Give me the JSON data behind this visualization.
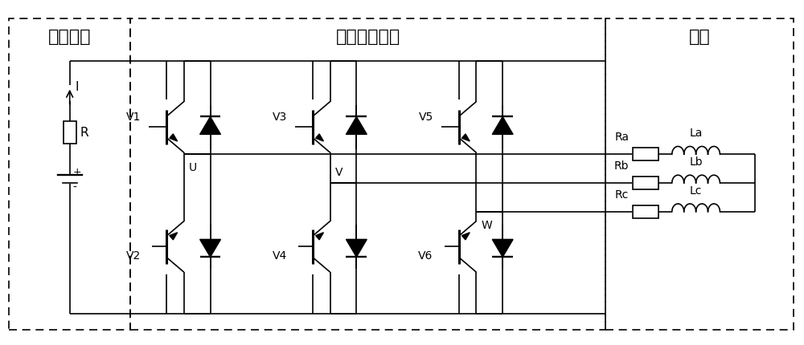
{
  "title_battery": "动力电池",
  "title_motor_ctrl": "电机控制系统",
  "title_motor": "电机",
  "label_I": "I",
  "label_R": "R",
  "label_U": "U",
  "label_V": "V",
  "label_W": "W",
  "label_V1": "V1",
  "label_V2": "V2",
  "label_V3": "V3",
  "label_V4": "V4",
  "label_V5": "V5",
  "label_V6": "V6",
  "label_Ra": "Ra",
  "label_Rb": "Rb",
  "label_Rc": "Rc",
  "label_La": "La",
  "label_Lb": "Lb",
  "label_Lc": "Lc",
  "bg_color": "#ffffff",
  "line_color": "#000000",
  "font_size_title": 16,
  "font_size_label": 10
}
